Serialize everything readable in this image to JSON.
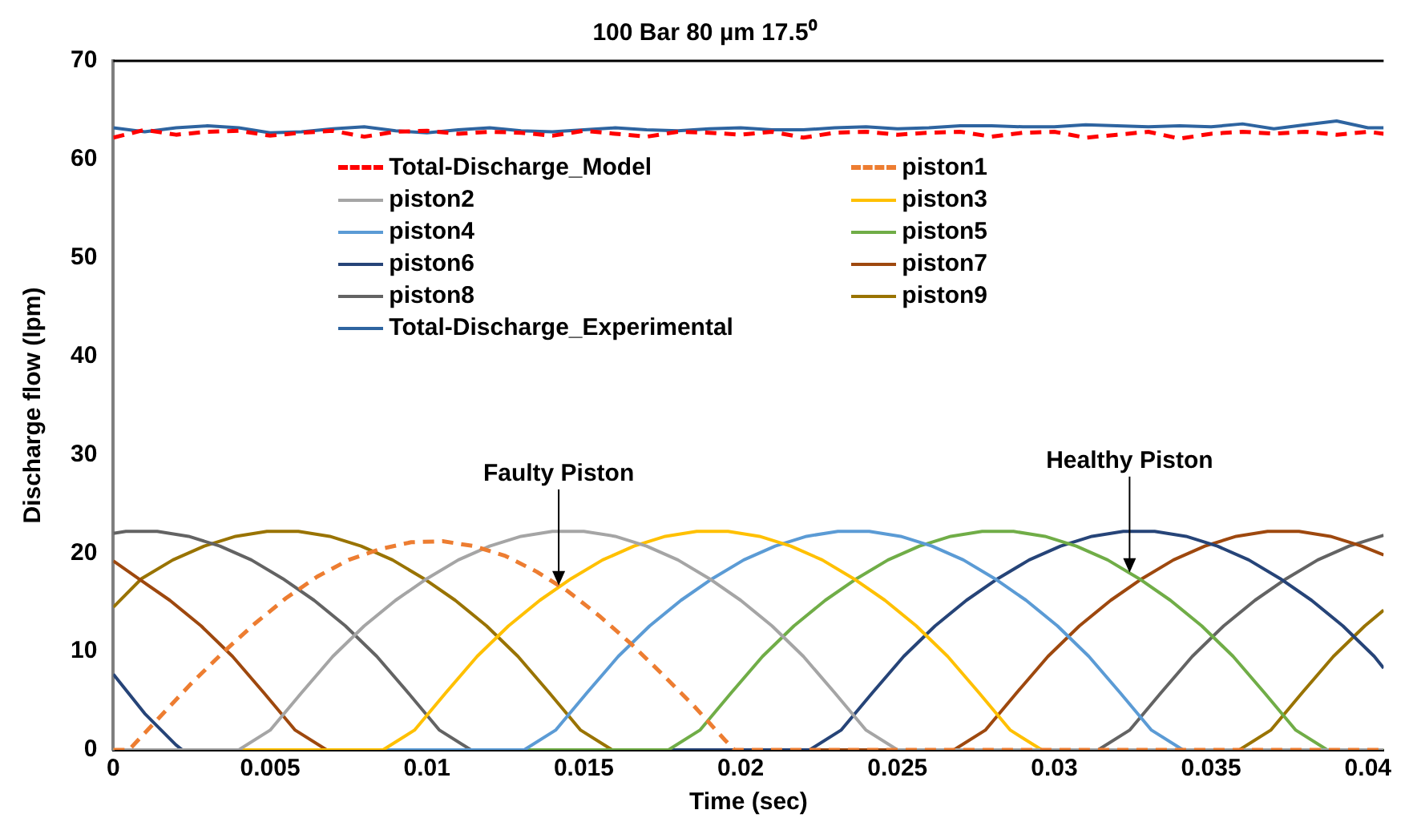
{
  "chart_data": {
    "type": "line",
    "title": "100 Bar 80 µm 17.5⁰",
    "xlabel": "Time (sec)",
    "ylabel": "Discharge flow (lpm)",
    "xlim": [
      0,
      0.0405
    ],
    "xticks": [
      0,
      0.005,
      0.01,
      0.015,
      0.02,
      0.025,
      0.03,
      0.035,
      0.04
    ],
    "ylim": [
      0,
      70
    ],
    "yticks": [
      0,
      10,
      20,
      30,
      40,
      50,
      60,
      70
    ],
    "grid": false,
    "legend": "top",
    "marker": "none",
    "annotations": [
      {
        "text": "Faulty Piston",
        "x": 0.0142,
        "y": 16.7
      },
      {
        "text": "Healthy Piston",
        "x": 0.0324,
        "y": 18.0
      }
    ],
    "series": [
      {
        "name": "Total-Discharge_Model",
        "color": "#ff0000",
        "line_style": "dashed",
        "x": [
          0,
          0.001,
          0.002,
          0.003,
          0.004,
          0.005,
          0.006,
          0.007,
          0.008,
          0.009,
          0.01,
          0.011,
          0.012,
          0.013,
          0.014,
          0.015,
          0.016,
          0.017,
          0.018,
          0.019,
          0.02,
          0.021,
          0.022,
          0.023,
          0.024,
          0.025,
          0.026,
          0.027,
          0.028,
          0.029,
          0.03,
          0.031,
          0.032,
          0.033,
          0.034,
          0.035,
          0.036,
          0.037,
          0.038,
          0.039,
          0.04,
          0.0405
        ],
        "values": [
          62.2,
          63.0,
          62.5,
          62.8,
          62.9,
          62.4,
          62.7,
          62.9,
          62.3,
          62.8,
          62.9,
          62.6,
          62.8,
          62.7,
          62.4,
          62.9,
          62.6,
          62.3,
          62.8,
          62.7,
          62.5,
          62.8,
          62.2,
          62.7,
          62.8,
          62.5,
          62.7,
          62.8,
          62.3,
          62.7,
          62.8,
          62.2,
          62.5,
          62.8,
          62.1,
          62.6,
          62.8,
          62.6,
          62.8,
          62.5,
          62.8,
          62.6
        ]
      },
      {
        "name": "piston1",
        "color": "#ed7d31",
        "line_style": "dashed",
        "x": [
          0,
          0.0005,
          0.0015,
          0.0025,
          0.0035,
          0.0045,
          0.0055,
          0.0065,
          0.0075,
          0.0085,
          0.0095,
          0.0105,
          0.0115,
          0.0125,
          0.0135,
          0.0145,
          0.0155,
          0.0165,
          0.0175,
          0.0185,
          0.0195,
          0.0198,
          0.0405
        ],
        "values": [
          0,
          0,
          3.4,
          6.8,
          9.9,
          12.8,
          15.4,
          17.6,
          19.3,
          20.4,
          21.1,
          21.2,
          20.7,
          19.7,
          18.1,
          16.1,
          13.6,
          10.8,
          7.7,
          4.5,
          1.0,
          0,
          0
        ]
      },
      {
        "name": "piston2",
        "color": "#a5a5a5",
        "x": [
          0,
          0.004,
          0.005,
          0.006,
          0.007,
          0.008,
          0.009,
          0.01,
          0.011,
          0.012,
          0.013,
          0.014,
          0.015,
          0.016,
          0.017,
          0.018,
          0.019,
          0.02,
          0.021,
          0.022,
          0.023,
          0.024,
          0.025,
          0.0405
        ],
        "values": [
          0,
          0,
          2.0,
          5.8,
          9.5,
          12.6,
          15.2,
          17.4,
          19.3,
          20.7,
          21.7,
          22.2,
          22.2,
          21.7,
          20.7,
          19.3,
          17.4,
          15.2,
          12.6,
          9.5,
          5.8,
          2.0,
          0,
          0
        ]
      },
      {
        "name": "piston3",
        "color": "#ffc000",
        "x": [
          0,
          0.0086,
          0.0096,
          0.0106,
          0.0116,
          0.0126,
          0.0136,
          0.0146,
          0.0156,
          0.0166,
          0.0176,
          0.0186,
          0.0196,
          0.0206,
          0.0216,
          0.0226,
          0.0236,
          0.0246,
          0.0256,
          0.0266,
          0.0276,
          0.0286,
          0.0296,
          0.0405
        ],
        "values": [
          0,
          0,
          2.0,
          5.8,
          9.5,
          12.6,
          15.2,
          17.4,
          19.3,
          20.7,
          21.7,
          22.2,
          22.2,
          21.7,
          20.7,
          19.3,
          17.4,
          15.2,
          12.6,
          9.5,
          5.8,
          2.0,
          0,
          0
        ]
      },
      {
        "name": "piston4",
        "color": "#5b9bd5",
        "x": [
          0,
          0.0131,
          0.0141,
          0.0151,
          0.0161,
          0.0171,
          0.0181,
          0.0191,
          0.0201,
          0.0211,
          0.0221,
          0.0231,
          0.0241,
          0.0251,
          0.0261,
          0.0271,
          0.0281,
          0.0291,
          0.0301,
          0.0311,
          0.0321,
          0.0331,
          0.0341,
          0.0405
        ],
        "values": [
          0,
          0,
          2.0,
          5.8,
          9.5,
          12.6,
          15.2,
          17.4,
          19.3,
          20.7,
          21.7,
          22.2,
          22.2,
          21.7,
          20.7,
          19.3,
          17.4,
          15.2,
          12.6,
          9.5,
          5.8,
          2.0,
          0,
          0
        ]
      },
      {
        "name": "piston5",
        "color": "#70ad47",
        "x": [
          0,
          0.0177,
          0.0187,
          0.0197,
          0.0207,
          0.0217,
          0.0227,
          0.0237,
          0.0247,
          0.0257,
          0.0267,
          0.0277,
          0.0287,
          0.0297,
          0.0307,
          0.0317,
          0.0327,
          0.0337,
          0.0347,
          0.0357,
          0.0367,
          0.0377,
          0.0387,
          0.0405
        ],
        "values": [
          0,
          0,
          2.0,
          5.8,
          9.5,
          12.6,
          15.2,
          17.4,
          19.3,
          20.7,
          21.7,
          22.2,
          22.2,
          21.7,
          20.7,
          19.3,
          17.4,
          15.2,
          12.6,
          9.5,
          5.8,
          2.0,
          0,
          0
        ]
      },
      {
        "name": "piston6",
        "color": "#264478",
        "x": [
          0,
          0.001,
          0.002,
          0.0022,
          0.0222,
          0.0232,
          0.0242,
          0.0252,
          0.0262,
          0.0272,
          0.0282,
          0.0292,
          0.0302,
          0.0312,
          0.0322,
          0.0332,
          0.0342,
          0.0352,
          0.0362,
          0.0372,
          0.0382,
          0.0392,
          0.0402,
          0.0405
        ],
        "values": [
          7.7,
          3.7,
          0.5,
          0,
          0,
          2.0,
          5.8,
          9.5,
          12.6,
          15.2,
          17.4,
          19.3,
          20.7,
          21.7,
          22.2,
          22.2,
          21.7,
          20.7,
          19.3,
          17.4,
          15.2,
          12.6,
          9.5,
          8.3
        ]
      },
      {
        "name": "piston7",
        "color": "#9e480e",
        "x": [
          0,
          0.0008,
          0.0018,
          0.0028,
          0.0038,
          0.0048,
          0.0058,
          0.0068,
          0.0268,
          0.0278,
          0.0288,
          0.0298,
          0.0308,
          0.0318,
          0.0328,
          0.0338,
          0.0348,
          0.0358,
          0.0368,
          0.0378,
          0.0388,
          0.0398,
          0.0405
        ],
        "values": [
          19.2,
          17.4,
          15.2,
          12.6,
          9.5,
          5.8,
          2.0,
          0,
          0,
          2.0,
          5.8,
          9.5,
          12.6,
          15.2,
          17.4,
          19.3,
          20.7,
          21.7,
          22.2,
          22.2,
          21.7,
          20.7,
          19.8
        ]
      },
      {
        "name": "piston8",
        "color": "#636363",
        "x": [
          0,
          0.0004,
          0.0014,
          0.0024,
          0.0034,
          0.0044,
          0.0054,
          0.0064,
          0.0074,
          0.0084,
          0.0094,
          0.0104,
          0.0114,
          0.0314,
          0.0324,
          0.0334,
          0.0344,
          0.0354,
          0.0364,
          0.0374,
          0.0384,
          0.0394,
          0.0404,
          0.0405
        ],
        "values": [
          22.0,
          22.2,
          22.2,
          21.7,
          20.7,
          19.3,
          17.4,
          15.2,
          12.6,
          9.5,
          5.8,
          2.0,
          0,
          0,
          2.0,
          5.8,
          9.5,
          12.6,
          15.2,
          17.4,
          19.3,
          20.7,
          21.7,
          21.8
        ]
      },
      {
        "name": "piston9",
        "color": "#997300",
        "x": [
          0,
          0.0009,
          0.0019,
          0.0029,
          0.0039,
          0.0049,
          0.0059,
          0.0069,
          0.0079,
          0.0089,
          0.0099,
          0.0109,
          0.0119,
          0.0129,
          0.0139,
          0.0149,
          0.0159,
          0.0359,
          0.0369,
          0.0379,
          0.0389,
          0.0399,
          0.0405
        ],
        "values": [
          14.5,
          17.4,
          19.3,
          20.7,
          21.7,
          22.2,
          22.2,
          21.7,
          20.7,
          19.3,
          17.4,
          15.2,
          12.6,
          9.5,
          5.8,
          2.0,
          0,
          0,
          2.0,
          5.8,
          9.5,
          12.6,
          14.2
        ]
      },
      {
        "name": "Total-Discharge_Experimental",
        "color": "#2e64a0",
        "x": [
          0,
          0.001,
          0.002,
          0.003,
          0.004,
          0.005,
          0.006,
          0.007,
          0.008,
          0.009,
          0.01,
          0.011,
          0.012,
          0.013,
          0.014,
          0.015,
          0.016,
          0.017,
          0.018,
          0.019,
          0.02,
          0.021,
          0.022,
          0.023,
          0.024,
          0.025,
          0.026,
          0.027,
          0.028,
          0.029,
          0.03,
          0.031,
          0.032,
          0.033,
          0.034,
          0.035,
          0.036,
          0.037,
          0.038,
          0.039,
          0.04,
          0.0405
        ],
        "values": [
          63.2,
          62.8,
          63.2,
          63.4,
          63.2,
          62.7,
          62.8,
          63.1,
          63.3,
          62.9,
          62.7,
          63.0,
          63.2,
          62.9,
          62.8,
          63.0,
          63.2,
          63.0,
          62.9,
          63.1,
          63.2,
          63.0,
          63.0,
          63.2,
          63.3,
          63.1,
          63.2,
          63.4,
          63.4,
          63.3,
          63.3,
          63.5,
          63.4,
          63.3,
          63.4,
          63.3,
          63.6,
          63.1,
          63.5,
          63.9,
          63.2,
          63.2
        ]
      }
    ]
  }
}
